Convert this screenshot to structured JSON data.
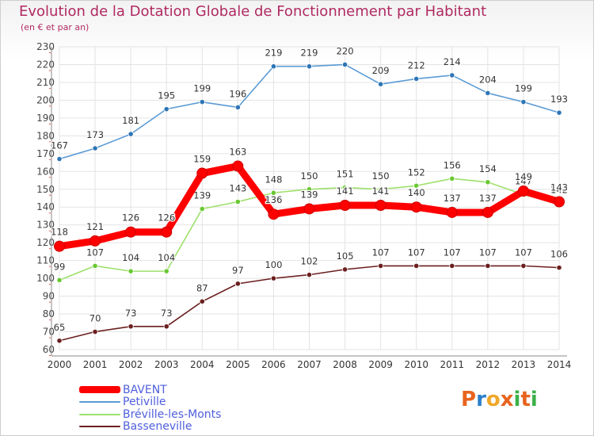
{
  "header": {
    "title": "Evolution de la Dotation Globale de Fonctionnement par Habitant",
    "subtitle": "(en € et par an)"
  },
  "logo": {
    "text": "Proxiti",
    "colors": [
      "#e8641e",
      "#2a7ec8",
      "#f0a82a",
      "#e8641e",
      "#3cb04a",
      "#e8641e",
      "#3cb04a"
    ]
  },
  "chart_data": {
    "type": "line",
    "x": [
      "2000",
      "2001",
      "2002",
      "2003",
      "2004",
      "2005",
      "2006",
      "2007",
      "2008",
      "2009",
      "2010",
      "2011",
      "2012",
      "2013",
      "2014"
    ],
    "ylim": [
      60,
      230
    ],
    "yticks": [
      60,
      70,
      80,
      90,
      100,
      110,
      120,
      130,
      140,
      150,
      160,
      170,
      180,
      190,
      200,
      210,
      220,
      230
    ],
    "grid": true,
    "legend_position": "bottom-left",
    "series": [
      {
        "name": "Petiville",
        "color": "#5b9bd5",
        "marker": "#2e75b6",
        "values": [
          167,
          173,
          181,
          195,
          199,
          196,
          219,
          219,
          220,
          209,
          212,
          214,
          204,
          199,
          193
        ]
      },
      {
        "name": "Bréville-les-Monts",
        "color": "#9ee06a",
        "marker": "#6ac832",
        "values": [
          99,
          107,
          104,
          104,
          139,
          143,
          148,
          150,
          151,
          150,
          152,
          156,
          154,
          147,
          142
        ]
      },
      {
        "name": "Basseneville",
        "color": "#6b1f1f",
        "marker": "#6b1f1f",
        "values": [
          65,
          70,
          73,
          73,
          87,
          97,
          100,
          102,
          105,
          107,
          107,
          107,
          107,
          107,
          106
        ]
      },
      {
        "name": "BAVENT",
        "color": "#ff0000",
        "marker": "#ff0000",
        "values": [
          118,
          121,
          126,
          126,
          159,
          163,
          136,
          139,
          141,
          141,
          140,
          137,
          137,
          149,
          143
        ]
      }
    ],
    "legend_order": [
      "BAVENT",
      "Petiville",
      "Bréville-les-Monts",
      "Basseneville"
    ]
  }
}
